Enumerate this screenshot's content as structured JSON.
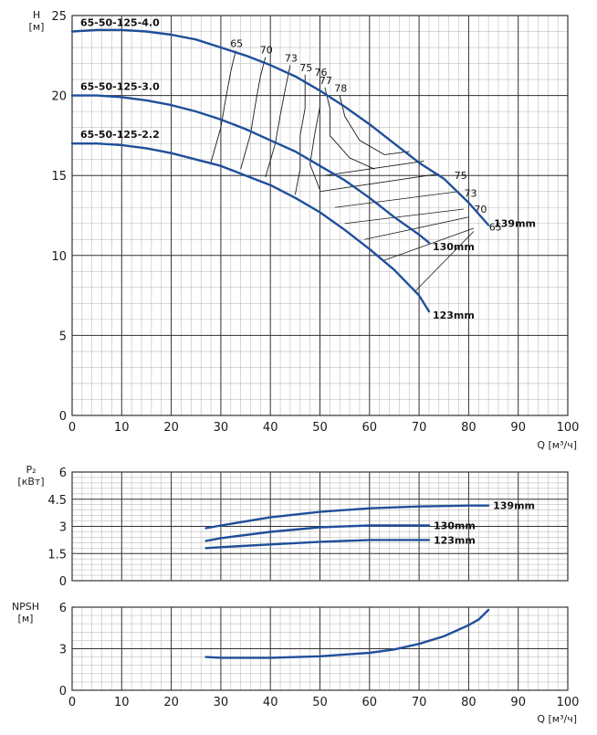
{
  "chart_data": [
    {
      "type": "line",
      "title": "",
      "xlabel": "Q [м³/ч]",
      "ylabel": "H\n[м]",
      "xlim": [
        0,
        100
      ],
      "ylim": [
        0,
        25
      ],
      "xticks": [
        0,
        10,
        20,
        30,
        40,
        50,
        60,
        70,
        80,
        90,
        100
      ],
      "yticks": [
        0,
        5,
        10,
        15,
        20,
        25
      ],
      "grid": true,
      "colors": {
        "curve": "#1f4f9a",
        "efficiency": "#1a1a1a",
        "grid_major": "#333333",
        "grid_minor": "#bdbdbd"
      },
      "series": [
        {
          "name": "139mm",
          "model": "65-50-125-4.0",
          "x": [
            0,
            5,
            10,
            15,
            20,
            25,
            30,
            35,
            40,
            45,
            50,
            55,
            60,
            65,
            70,
            75,
            80,
            84
          ],
          "y": [
            24.0,
            24.1,
            24.1,
            24.0,
            23.8,
            23.5,
            23.0,
            22.5,
            21.9,
            21.2,
            20.3,
            19.3,
            18.2,
            17.0,
            15.8,
            14.8,
            13.3,
            11.9
          ]
        },
        {
          "name": "130mm",
          "model": "65-50-125-3.0",
          "x": [
            0,
            5,
            10,
            15,
            20,
            25,
            30,
            35,
            40,
            45,
            50,
            55,
            60,
            65,
            70,
            72
          ],
          "y": [
            20.0,
            20.0,
            19.9,
            19.7,
            19.4,
            19.0,
            18.5,
            17.9,
            17.2,
            16.5,
            15.6,
            14.7,
            13.6,
            12.4,
            11.3,
            10.8
          ]
        },
        {
          "name": "123mm",
          "model": "65-50-125-2.2",
          "x": [
            0,
            5,
            10,
            15,
            20,
            25,
            30,
            35,
            40,
            45,
            50,
            55,
            60,
            65,
            70,
            72
          ],
          "y": [
            17.0,
            17.0,
            16.9,
            16.7,
            16.4,
            16.0,
            15.6,
            15.0,
            14.4,
            13.6,
            12.7,
            11.6,
            10.4,
            9.1,
            7.5,
            6.5
          ]
        }
      ],
      "efficiency_lines": [
        {
          "label": "65",
          "x": [
            28,
            30,
            31,
            32,
            33
          ],
          "y": [
            15.8,
            18.0,
            19.8,
            21.5,
            22.8
          ]
        },
        {
          "label": "70",
          "x": [
            34,
            36,
            37,
            38,
            39
          ],
          "y": [
            15.4,
            17.6,
            19.5,
            21.2,
            22.4
          ]
        },
        {
          "label": "73",
          "x": [
            39,
            41,
            42,
            43,
            44
          ],
          "y": [
            14.9,
            17.0,
            18.8,
            20.4,
            21.9
          ]
        },
        {
          "label": "75",
          "x": [
            45,
            46,
            46,
            47,
            47
          ],
          "y": [
            13.8,
            15.4,
            17.5,
            19.2,
            21.3
          ]
        },
        {
          "label": "76",
          "x": [
            50,
            48,
            49,
            50,
            50
          ],
          "y": [
            14.1,
            15.7,
            17.7,
            19.3,
            21.0
          ]
        },
        {
          "label": "77",
          "x": [
            61,
            56,
            52,
            52,
            51
          ],
          "y": [
            15.4,
            16.1,
            17.5,
            19.2,
            20.5
          ]
        },
        {
          "label": "78",
          "x": [
            68,
            63,
            58,
            55,
            54
          ],
          "y": [
            16.5,
            16.3,
            17.2,
            18.7,
            20.0
          ]
        }
      ],
      "efficiency_right_labels": [
        "75",
        "73",
        "70",
        "65"
      ],
      "efficiency_rungs": [
        {
          "x1": 51,
          "y1": 15.0,
          "x2": 71,
          "y2": 15.9
        },
        {
          "x1": 50,
          "y1": 14.0,
          "x2": 74,
          "y2": 15.1
        },
        {
          "x1": 53,
          "y1": 13.0,
          "x2": 78,
          "y2": 14.0
        },
        {
          "x1": 55,
          "y1": 12.0,
          "x2": 79,
          "y2": 12.9
        },
        {
          "x1": 59,
          "y1": 11.0,
          "x2": 80,
          "y2": 12.4
        },
        {
          "x1": 63,
          "y1": 9.7,
          "x2": 81,
          "y2": 11.7
        },
        {
          "x1": 69,
          "y1": 7.7,
          "x2": 81,
          "y2": 11.5
        }
      ]
    },
    {
      "type": "line",
      "title": "",
      "xlabel": "",
      "ylabel": "P₂\n[кВт]",
      "xlim": [
        0,
        100
      ],
      "ylim": [
        0,
        6
      ],
      "yticks": [
        0,
        1.5,
        3,
        4.5,
        6
      ],
      "ytick_labels": [
        "0",
        "1.5",
        "3",
        "4.5",
        "6"
      ],
      "grid": true,
      "series": [
        {
          "name": "139mm",
          "x": [
            27,
            30,
            40,
            50,
            60,
            70,
            80,
            84
          ],
          "y": [
            2.9,
            3.05,
            3.5,
            3.8,
            4.0,
            4.1,
            4.15,
            4.15
          ]
        },
        {
          "name": "130mm",
          "x": [
            27,
            30,
            40,
            50,
            60,
            72
          ],
          "y": [
            2.2,
            2.35,
            2.7,
            2.95,
            3.05,
            3.05
          ]
        },
        {
          "name": "123mm",
          "x": [
            27,
            30,
            40,
            50,
            60,
            72
          ],
          "y": [
            1.8,
            1.85,
            2.0,
            2.15,
            2.25,
            2.25
          ]
        }
      ]
    },
    {
      "type": "line",
      "title": "",
      "xlabel": "Q [м³/ч]",
      "ylabel": "NPSH\n[м]",
      "xlim": [
        0,
        100
      ],
      "ylim": [
        0,
        6
      ],
      "xticks": [
        0,
        10,
        20,
        30,
        40,
        50,
        60,
        70,
        80,
        90,
        100
      ],
      "yticks": [
        0,
        3,
        6
      ],
      "grid": true,
      "series": [
        {
          "name": "",
          "x": [
            27,
            30,
            40,
            50,
            60,
            65,
            70,
            75,
            80,
            82,
            84
          ],
          "y": [
            2.4,
            2.35,
            2.35,
            2.45,
            2.7,
            2.95,
            3.35,
            3.9,
            4.7,
            5.1,
            5.8
          ]
        }
      ]
    }
  ]
}
